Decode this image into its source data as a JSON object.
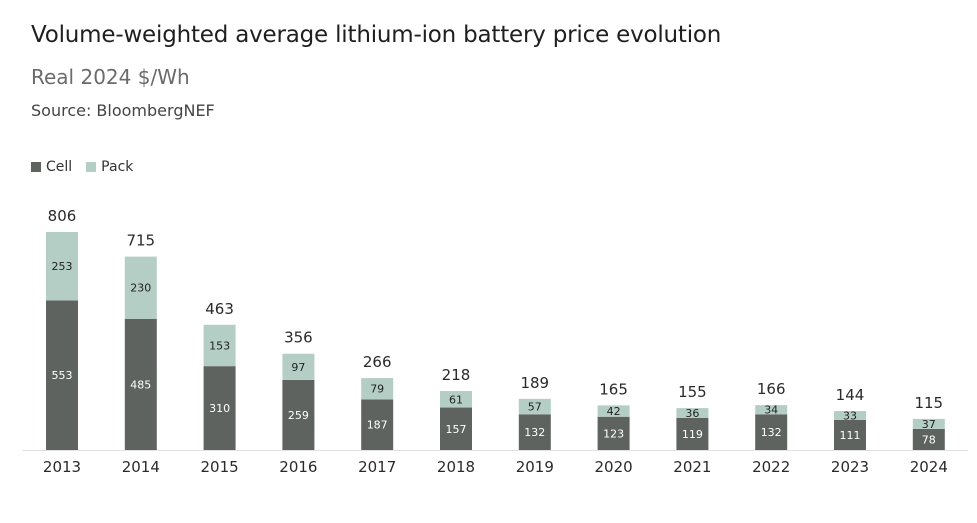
{
  "chart_data": {
    "type": "bar",
    "stacked": true,
    "title": "Volume-weighted average lithium-ion battery price evolution",
    "subtitle": "Real 2024 $/Wh",
    "source": "Source: BloombergNEF",
    "categories": [
      "2013",
      "2014",
      "2015",
      "2016",
      "2017",
      "2018",
      "2019",
      "2020",
      "2021",
      "2022",
      "2023",
      "2024"
    ],
    "series": [
      {
        "name": "Cell",
        "color": "#5f6360",
        "values": [
          553,
          485,
          310,
          259,
          187,
          157,
          132,
          123,
          119,
          132,
          111,
          78
        ]
      },
      {
        "name": "Pack",
        "color": "#b4cec6",
        "values": [
          253,
          230,
          153,
          97,
          79,
          61,
          57,
          42,
          36,
          34,
          33,
          37
        ]
      }
    ],
    "totals": [
      806,
      715,
      463,
      356,
      266,
      218,
      189,
      165,
      155,
      166,
      144,
      115
    ],
    "ylim": [
      0,
      806
    ],
    "legend_position": "top-left"
  }
}
